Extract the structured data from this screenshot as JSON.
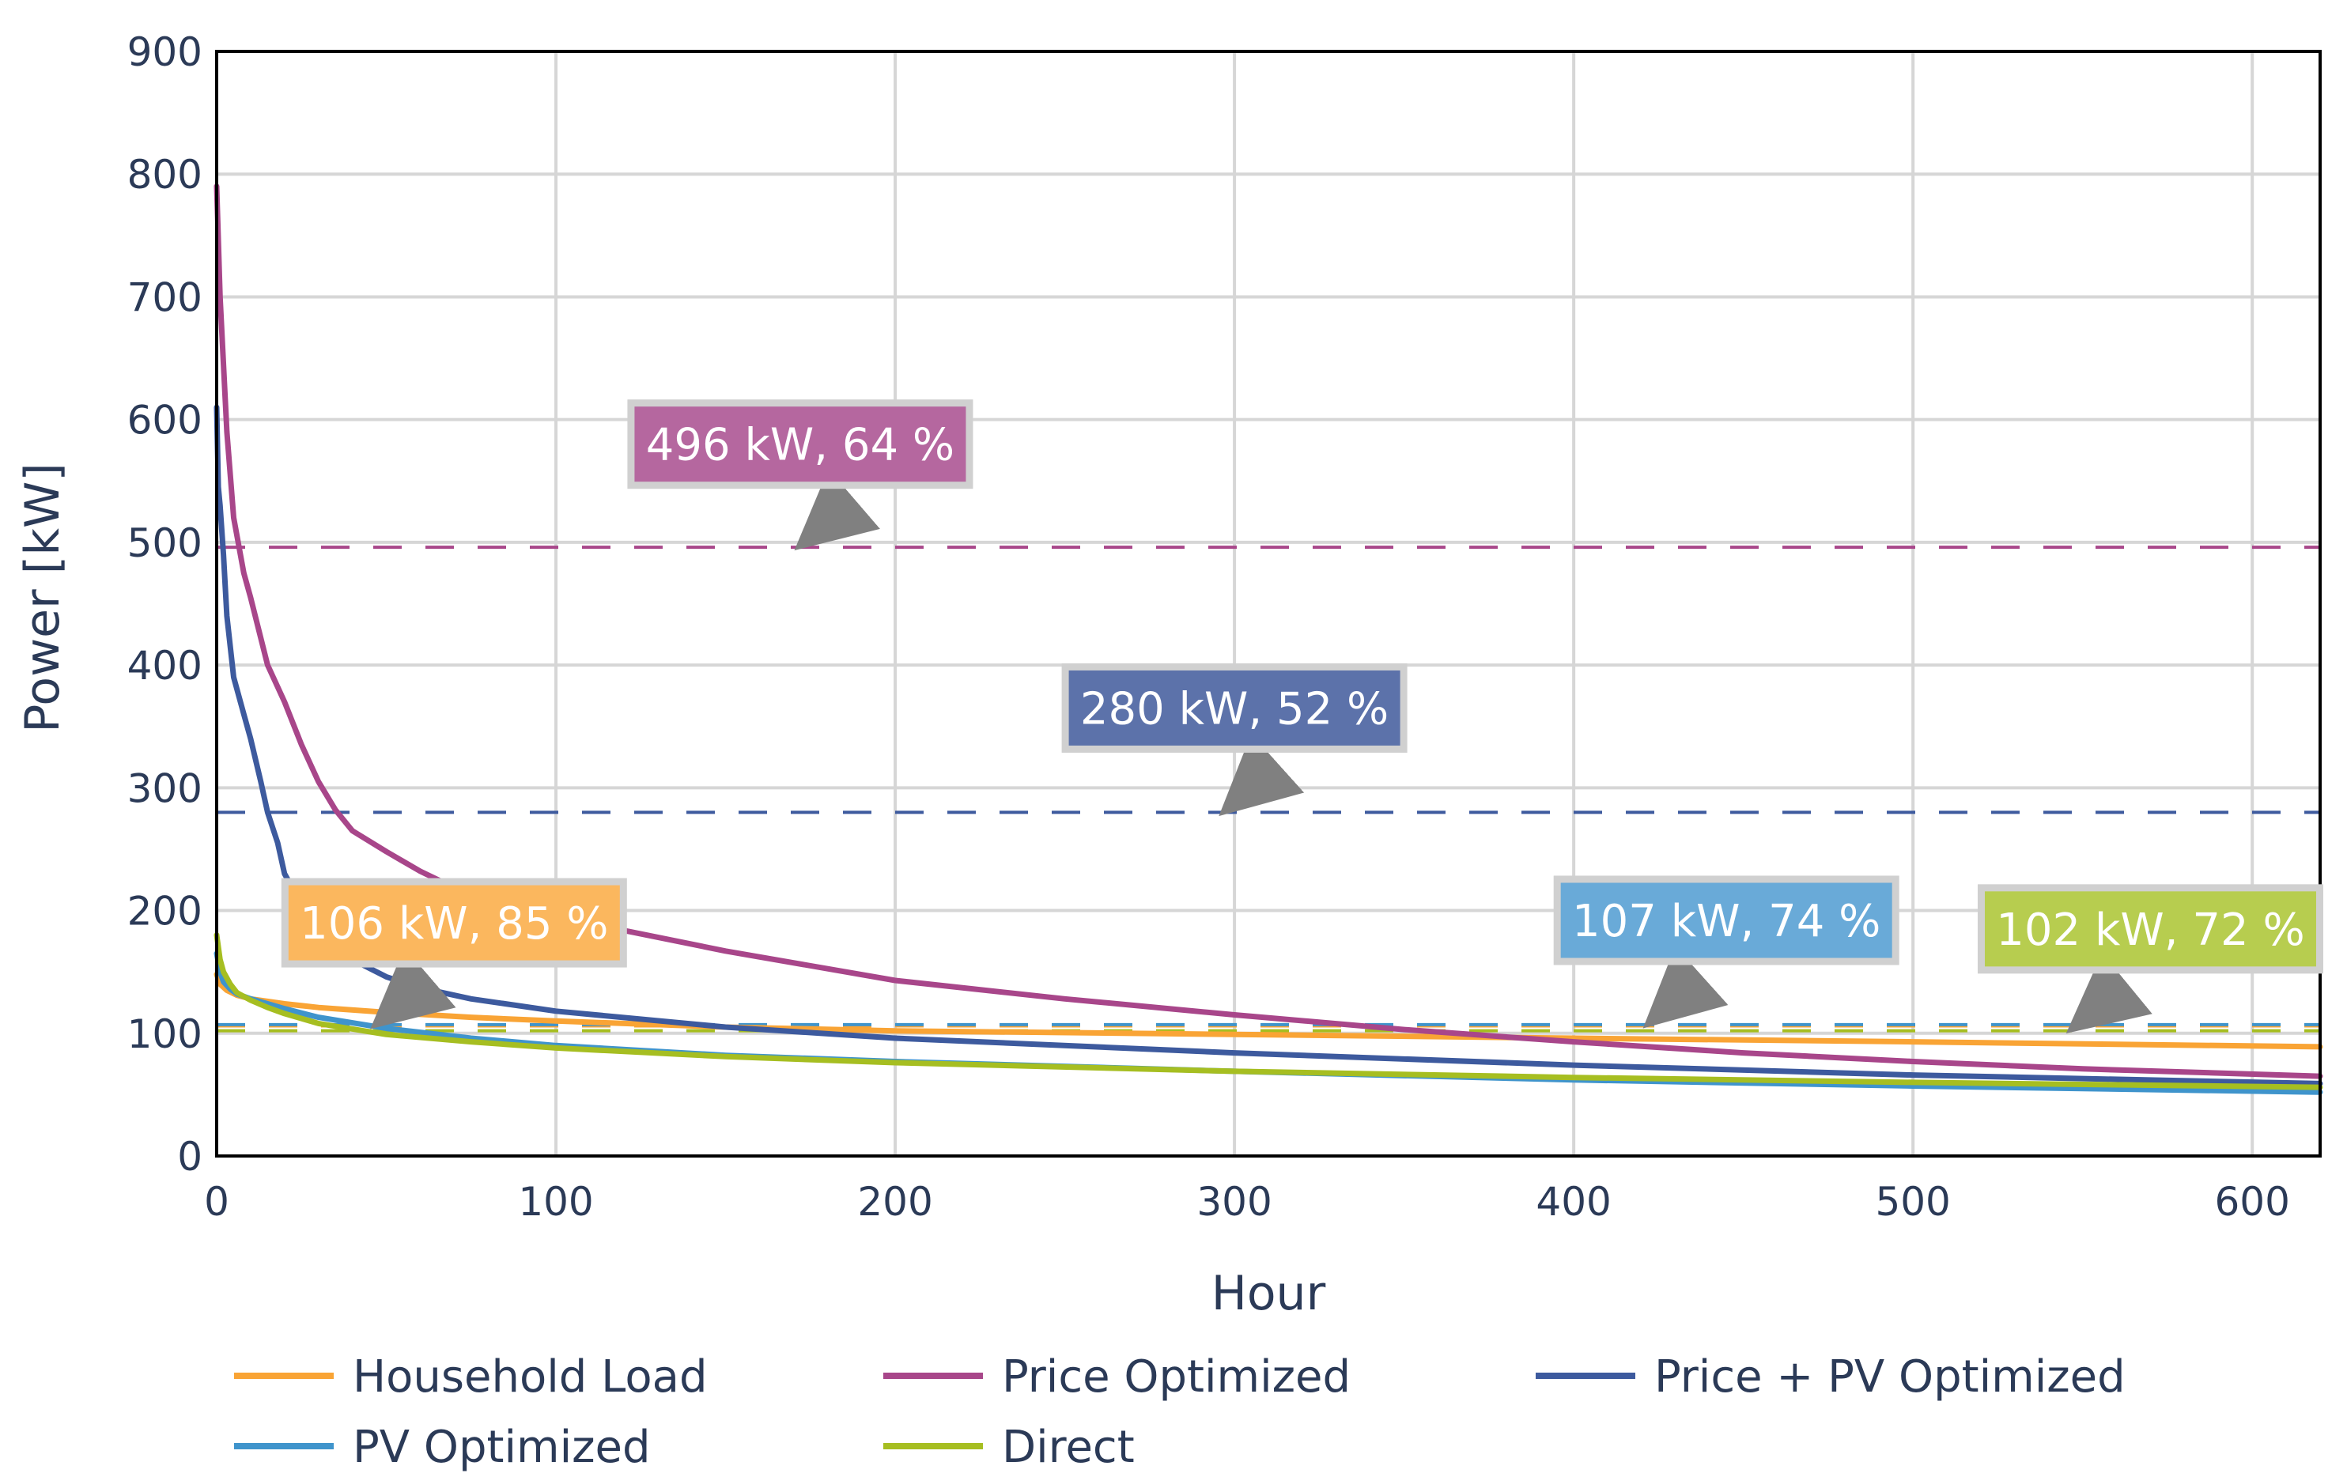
{
  "chart_data": {
    "type": "line",
    "xlabel": "Hour",
    "ylabel": "Power [kW]",
    "xlim": [
      0,
      620
    ],
    "ylim": [
      0,
      900
    ],
    "x_ticks": [
      "0",
      "100",
      "200",
      "300",
      "400",
      "500",
      "600"
    ],
    "y_ticks": [
      "0",
      "100",
      "200",
      "300",
      "400",
      "500",
      "600",
      "700",
      "800",
      "900"
    ],
    "grid": true,
    "legend_position": "bottom",
    "series": [
      {
        "name": "Household Load",
        "color": "#f9a435",
        "x": [
          0,
          1,
          3,
          6,
          10,
          20,
          30,
          50,
          75,
          100,
          150,
          200,
          300,
          400,
          500,
          620
        ],
        "y": [
          148,
          140,
          135,
          131,
          128,
          124,
          121,
          117,
          113,
          110,
          105,
          102,
          99,
          96,
          93,
          89
        ]
      },
      {
        "name": "Price Optimized",
        "color": "#a8468a",
        "x": [
          0,
          1,
          3,
          5,
          8,
          10,
          15,
          20,
          25,
          30,
          35,
          40,
          50,
          60,
          75,
          100,
          150,
          200,
          250,
          300,
          350,
          400,
          450,
          500,
          550,
          620
        ],
        "y": [
          790,
          700,
          590,
          520,
          475,
          455,
          400,
          370,
          335,
          305,
          282,
          265,
          248,
          232,
          212,
          195,
          167,
          143,
          128,
          115,
          103,
          93,
          84,
          77,
          71,
          65
        ]
      },
      {
        "name": "Price + PV Optimized",
        "color": "#3d5a9e",
        "x": [
          0,
          0.5,
          1,
          2,
          3,
          5,
          8,
          10,
          13,
          15,
          18,
          20,
          25,
          30,
          40,
          50,
          60,
          75,
          100,
          150,
          200,
          300,
          400,
          500,
          620
        ],
        "y": [
          610,
          545,
          530,
          490,
          440,
          390,
          360,
          340,
          305,
          280,
          255,
          230,
          205,
          185,
          160,
          146,
          137,
          128,
          118,
          105,
          96,
          84,
          74,
          66,
          59
        ]
      },
      {
        "name": "PV Optimized",
        "color": "#3f94cc",
        "x": [
          0,
          1,
          2,
          4,
          6,
          10,
          15,
          20,
          30,
          50,
          75,
          100,
          150,
          200,
          300,
          400,
          500,
          620
        ],
        "y": [
          165,
          150,
          142,
          136,
          132,
          128,
          124,
          120,
          113,
          104,
          96,
          90,
          82,
          77,
          69,
          62,
          57,
          52
        ]
      },
      {
        "name": "Direct",
        "color": "#a6be21",
        "x": [
          0,
          1,
          2,
          4,
          6,
          10,
          15,
          20,
          30,
          50,
          75,
          100,
          150,
          200,
          300,
          400,
          500,
          620
        ],
        "y": [
          180,
          160,
          150,
          140,
          133,
          127,
          121,
          116,
          108,
          99,
          93,
          88,
          81,
          76,
          69,
          64,
          60,
          56
        ]
      }
    ],
    "reference_lines": [
      {
        "series": "Price Optimized",
        "y": 496,
        "color": "#a8468a"
      },
      {
        "series": "Price + PV Optimized",
        "y": 280,
        "color": "#3d5a9e"
      },
      {
        "series": "Household Load",
        "y": 106,
        "color": "#f9a435"
      },
      {
        "series": "PV Optimized",
        "y": 107,
        "color": "#3f94cc"
      },
      {
        "series": "Direct",
        "y": 102,
        "color": "#a6be21"
      }
    ],
    "annotations": [
      {
        "text": "496 kW, 64 %",
        "series": "Price Optimized",
        "box_color": "#b5679f",
        "box_x": 172,
        "box_y": 580,
        "arrow_x": 175,
        "arrow_y": 496
      },
      {
        "text": "280 kW, 52 %",
        "series": "Price + PV Optimized",
        "box_color": "#5c72aa",
        "box_x": 300,
        "box_y": 365,
        "arrow_x": 300,
        "arrow_y": 280
      },
      {
        "text": "106 kW, 85 %",
        "series": "Household Load",
        "box_color": "#fbb75e",
        "box_x": 70,
        "box_y": 190,
        "arrow_x": 50,
        "arrow_y": 106
      },
      {
        "text": "107 kW, 74 %",
        "series": "PV Optimized",
        "box_color": "#69aad8",
        "box_x": 445,
        "box_y": 192,
        "arrow_x": 425,
        "arrow_y": 107
      },
      {
        "text": "102 kW, 72 %",
        "series": "Direct",
        "box_color": "#b7cd4f",
        "box_x": 570,
        "box_y": 185,
        "arrow_x": 550,
        "arrow_y": 102
      }
    ]
  }
}
